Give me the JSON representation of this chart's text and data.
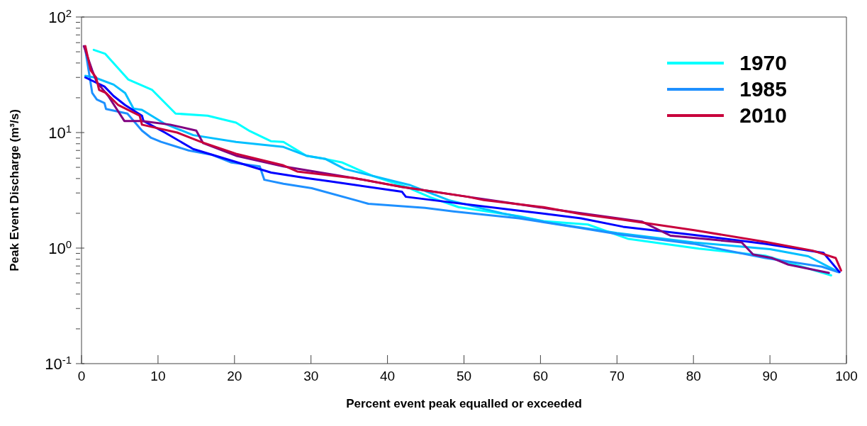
{
  "chart_data": {
    "type": "line",
    "xlabel": "Percent event peak equalled or exceeded",
    "ylabel": "Peak Event Discharge (m³/s)",
    "xlim": [
      0,
      100
    ],
    "xticks": [
      0,
      10,
      20,
      30,
      40,
      50,
      60,
      70,
      80,
      90,
      100
    ],
    "ylim": [
      0.1,
      100
    ],
    "yticks": [
      {
        "value": 0.1,
        "label": "10$^{-1}$"
      },
      {
        "value": 0.2,
        "label": null
      },
      {
        "value": 0.3,
        "label": null
      },
      {
        "value": 0.4,
        "label": null
      },
      {
        "value": 0.5,
        "label": null
      },
      {
        "value": 0.6,
        "label": null
      },
      {
        "value": 0.7,
        "label": null
      },
      {
        "value": 0.8,
        "label": null
      },
      {
        "value": 0.9,
        "label": null
      },
      {
        "value": 1,
        "label": "10$^{0}$"
      },
      {
        "value": 2,
        "label": null
      },
      {
        "value": 3,
        "label": null
      },
      {
        "value": 4,
        "label": null
      },
      {
        "value": 5,
        "label": null
      },
      {
        "value": 6,
        "label": null
      },
      {
        "value": 7,
        "label": null
      },
      {
        "value": 8,
        "label": null
      },
      {
        "value": 9,
        "label": null
      },
      {
        "value": 10,
        "label": "10$^{1}$"
      },
      {
        "value": 20,
        "label": null
      },
      {
        "value": 30,
        "label": null
      },
      {
        "value": 40,
        "label": null
      },
      {
        "value": 50,
        "label": null
      },
      {
        "value": 60,
        "label": null
      },
      {
        "value": 70,
        "label": null
      },
      {
        "value": 80,
        "label": null
      },
      {
        "value": 90,
        "label": null
      },
      {
        "value": 100,
        "label": "10$^{2}$"
      }
    ],
    "log": "y",
    "grid": false,
    "legend": "top right",
    "marker": "none",
    "line_style": "solid",
    "series": [
      {
        "name": "1970",
        "color": "#00ffff",
        "x": [
          1.6,
          3.1,
          6.1,
          9.2,
          12.3,
          16.5,
          20.2,
          22,
          24.8,
          26.4,
          29.4,
          31.9,
          34.1,
          38.1,
          42.4,
          45.6,
          49.3,
          57.2,
          60.4,
          66.2,
          71.5,
          80.7,
          89.4,
          98
        ],
        "values": [
          52,
          48,
          28.8,
          23.5,
          14.6,
          14,
          12.2,
          10.3,
          8.4,
          8.3,
          6.3,
          5.9,
          5.5,
          4.2,
          3.4,
          2.75,
          2.26,
          1.89,
          1.71,
          1.6,
          1.2,
          0.99,
          0.86,
          0.58
        ]
      },
      {
        "color": "#00bfff",
        "x": [
          0.5,
          1.7,
          4.2,
          5.7,
          6.8,
          7.9,
          10.9,
          14.6,
          20.2,
          26.4,
          29.4,
          31.9,
          34.4,
          43,
          48,
          55,
          61.6,
          70,
          80,
          90,
          95,
          99
        ],
        "values": [
          31,
          30,
          26,
          22,
          16.1,
          15.7,
          11.9,
          9.5,
          8.3,
          7.5,
          6.3,
          5.9,
          4.84,
          3.5,
          2.6,
          2,
          1.64,
          1.35,
          1.12,
          0.98,
          0.85,
          0.62
        ]
      },
      {
        "name": "1985",
        "color": "#1e90ff",
        "x": [
          0.5,
          1.4,
          2,
          3,
          3.2,
          6,
          7.9,
          9.1,
          10.4,
          14,
          17.1,
          19.6,
          23.3,
          23.9,
          26.4,
          30.1,
          37.5,
          44.9,
          48.6,
          57.2,
          65.3,
          70.8,
          80,
          89.4,
          96.8,
          98.9
        ],
        "values": [
          52,
          22,
          19.3,
          18,
          16,
          14.6,
          10.4,
          9,
          8.3,
          7,
          6.4,
          5.5,
          5.1,
          3.9,
          3.6,
          3.3,
          2.42,
          2.23,
          2.08,
          1.81,
          1.49,
          1.3,
          1.09,
          0.82,
          0.69,
          0.62
        ]
      },
      {
        "color": "#0000ff",
        "x": [
          0.5,
          3,
          4.2,
          5.7,
          7.9,
          8.1,
          10.9,
          14.6,
          20.2,
          24.8,
          29.4,
          32.6,
          41.9,
          42.4,
          48,
          57.2,
          65.3,
          70.8,
          80.1,
          89.4,
          97,
          99.1
        ],
        "values": [
          30,
          25,
          20.7,
          17.3,
          14,
          12.6,
          10,
          7.2,
          5.56,
          4.5,
          4.04,
          3.77,
          3.07,
          2.78,
          2.5,
          2.11,
          1.81,
          1.53,
          1.3,
          1.09,
          0.91,
          0.62
        ]
      },
      {
        "color": "#800080",
        "x": [
          0.3,
          1.4,
          2,
          3.5,
          5.6,
          7.9,
          11.6,
          15,
          15.9,
          20.2,
          26.4,
          35.6,
          41.9,
          50.5,
          61.6,
          73.3,
          77,
          86.3,
          87.8,
          90.3,
          92.4,
          97.7
        ],
        "values": [
          56,
          34.5,
          27.3,
          20.7,
          12.6,
          12.6,
          11.7,
          10.4,
          8.1,
          6.3,
          5.1,
          4.04,
          3.38,
          2.78,
          2.17,
          1.69,
          1.28,
          1.12,
          0.88,
          0.82,
          0.72,
          0.61
        ]
      },
      {
        "name": "2010",
        "color": "#c8003c",
        "x": [
          0.5,
          1.2,
          1.9,
          2.3,
          3.2,
          4.8,
          7.6,
          7.9,
          12.5,
          15.6,
          20.2,
          26.4,
          28.2,
          35.6,
          41.9,
          50.5,
          52.6,
          60.4,
          65.3,
          70.8,
          80.1,
          89.4,
          95.6,
          98.6,
          99.3
        ],
        "values": [
          56,
          34.5,
          30,
          23.4,
          22,
          17.3,
          14,
          11.7,
          10,
          8.3,
          6.55,
          5.2,
          4.6,
          4.04,
          3.38,
          2.78,
          2.6,
          2.26,
          1.97,
          1.76,
          1.43,
          1.13,
          0.95,
          0.82,
          0.64
        ]
      }
    ]
  }
}
